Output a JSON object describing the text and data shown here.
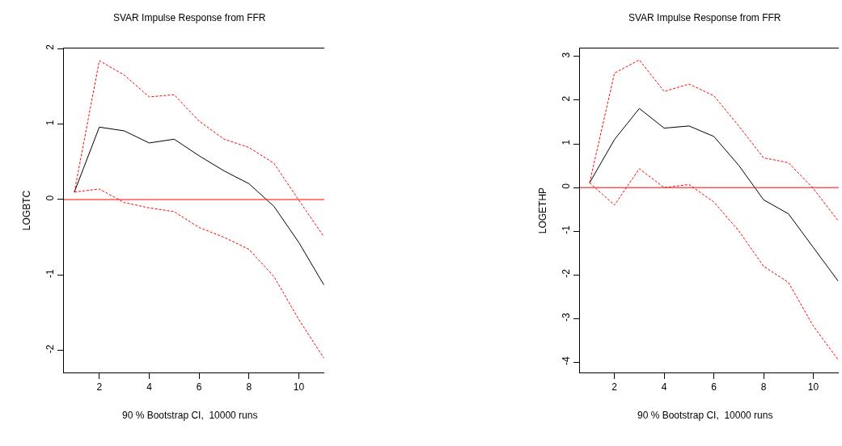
{
  "chart_data": [
    {
      "type": "line",
      "title": "SVAR Impulse Response from FFR",
      "ylabel": "LOGBTC",
      "annotations": [
        "90 % Bootstrap CI,  10000 runs"
      ],
      "x": [
        1,
        2,
        3,
        4,
        5,
        6,
        7,
        8,
        9,
        10,
        11
      ],
      "series": [
        {
          "color": "#000000",
          "line_style": "solid",
          "values": [
            0.1,
            0.96,
            0.91,
            0.75,
            0.8,
            0.58,
            0.38,
            0.21,
            -0.09,
            -0.57,
            -1.13
          ]
        },
        {
          "color": "#ff0000",
          "line_style": "dashed",
          "values": [
            0.1,
            1.84,
            1.65,
            1.36,
            1.39,
            1.04,
            0.8,
            0.69,
            0.48,
            -0.01,
            -0.49
          ]
        },
        {
          "color": "#ff0000",
          "line_style": "dashed",
          "values": [
            0.1,
            0.14,
            -0.04,
            -0.11,
            -0.16,
            -0.37,
            -0.5,
            -0.66,
            -1.02,
            -1.59,
            -2.1
          ]
        }
      ],
      "ref_lines": [
        {
          "axis": "y",
          "value": 0,
          "color": "#ff0000"
        }
      ],
      "xlim": [
        0.58,
        11.02
      ],
      "xticks": [
        2,
        4,
        6,
        8,
        10
      ],
      "ylim": [
        -2.29,
        2.0
      ],
      "yticks": [
        -2,
        -1,
        0,
        1,
        2
      ],
      "marker": "none"
    },
    {
      "type": "line",
      "title": "SVAR Impulse Response from FFR",
      "ylabel": "LOGETHP",
      "annotations": [
        "90 % Bootstrap CI,  10000 runs"
      ],
      "x": [
        1,
        2,
        3,
        4,
        5,
        6,
        7,
        8,
        9,
        10,
        11
      ],
      "series": [
        {
          "color": "#000000",
          "line_style": "solid",
          "values": [
            0.11,
            1.1,
            1.81,
            1.36,
            1.41,
            1.17,
            0.51,
            -0.28,
            -0.6,
            -1.37,
            -2.14
          ]
        },
        {
          "color": "#ff0000",
          "line_style": "dashed",
          "values": [
            0.11,
            2.62,
            2.92,
            2.2,
            2.37,
            2.1,
            1.41,
            0.68,
            0.57,
            -0.02,
            -0.76
          ]
        },
        {
          "color": "#ff0000",
          "line_style": "dashed",
          "values": [
            0.11,
            -0.4,
            0.43,
            0.0,
            0.07,
            -0.33,
            -0.99,
            -1.8,
            -2.17,
            -3.17,
            -3.94
          ]
        }
      ],
      "ref_lines": [
        {
          "axis": "y",
          "value": 0,
          "color": "#ff0000"
        }
      ],
      "xlim": [
        0.61,
        11.02
      ],
      "xticks": [
        2,
        4,
        6,
        8,
        10
      ],
      "ylim": [
        -4.23,
        3.18
      ],
      "yticks": [
        -4,
        -3,
        -2,
        -1,
        0,
        1,
        2,
        3
      ],
      "marker": "none"
    }
  ]
}
